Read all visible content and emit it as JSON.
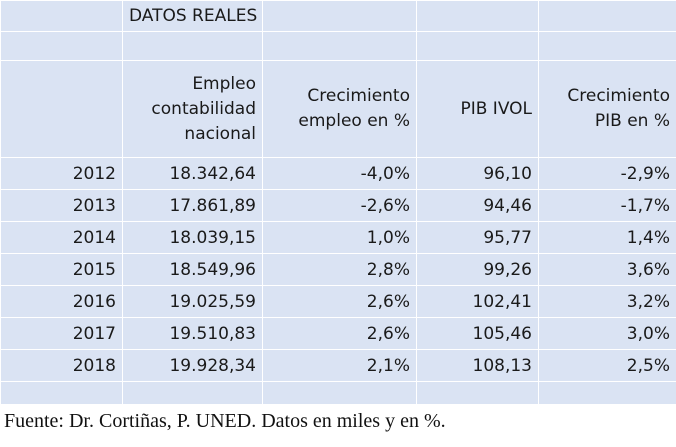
{
  "title": "DATOS REALES",
  "columns": [
    "Empleo contabilidad nacional",
    "Crecimiento empleo en %",
    "PIB IVOL",
    "Crecimiento PIB en %"
  ],
  "header_lines": {
    "empleo": [
      "Empleo",
      "contabilidad",
      "nacional"
    ],
    "crec_empleo": [
      "Crecimiento",
      "empleo en %"
    ],
    "pib": [
      "PIB IVOL"
    ],
    "crec_pib": [
      "Crecimiento",
      "PIB en %"
    ]
  },
  "rows": [
    {
      "year": "2012",
      "empleo": "18.342,64",
      "crec_empleo": "-4,0%",
      "pib": "96,10",
      "crec_pib": "-2,9%"
    },
    {
      "year": "2013",
      "empleo": "17.861,89",
      "crec_empleo": "-2,6%",
      "pib": "94,46",
      "crec_pib": "-1,7%"
    },
    {
      "year": "2014",
      "empleo": "18.039,15",
      "crec_empleo": "1,0%",
      "pib": "95,77",
      "crec_pib": "1,4%"
    },
    {
      "year": "2015",
      "empleo": "18.549,96",
      "crec_empleo": "2,8%",
      "pib": "99,26",
      "crec_pib": "3,6%"
    },
    {
      "year": "2016",
      "empleo": "19.025,59",
      "crec_empleo": "2,6%",
      "pib": "102,41",
      "crec_pib": "3,2%"
    },
    {
      "year": "2017",
      "empleo": "19.510,83",
      "crec_empleo": "2,6%",
      "pib": "105,46",
      "crec_pib": "3,0%"
    },
    {
      "year": "2018",
      "empleo": "19.928,34",
      "crec_empleo": "2,1%",
      "pib": "108,13",
      "crec_pib": "2,5%"
    }
  ],
  "source_note": "Fuente: Dr. Cortiñas, P. UNED. Datos en miles y en %.",
  "colors": {
    "cell_background": "#dae3f3",
    "grid_lines": "#ffffff",
    "text": "#1a1a1a"
  }
}
